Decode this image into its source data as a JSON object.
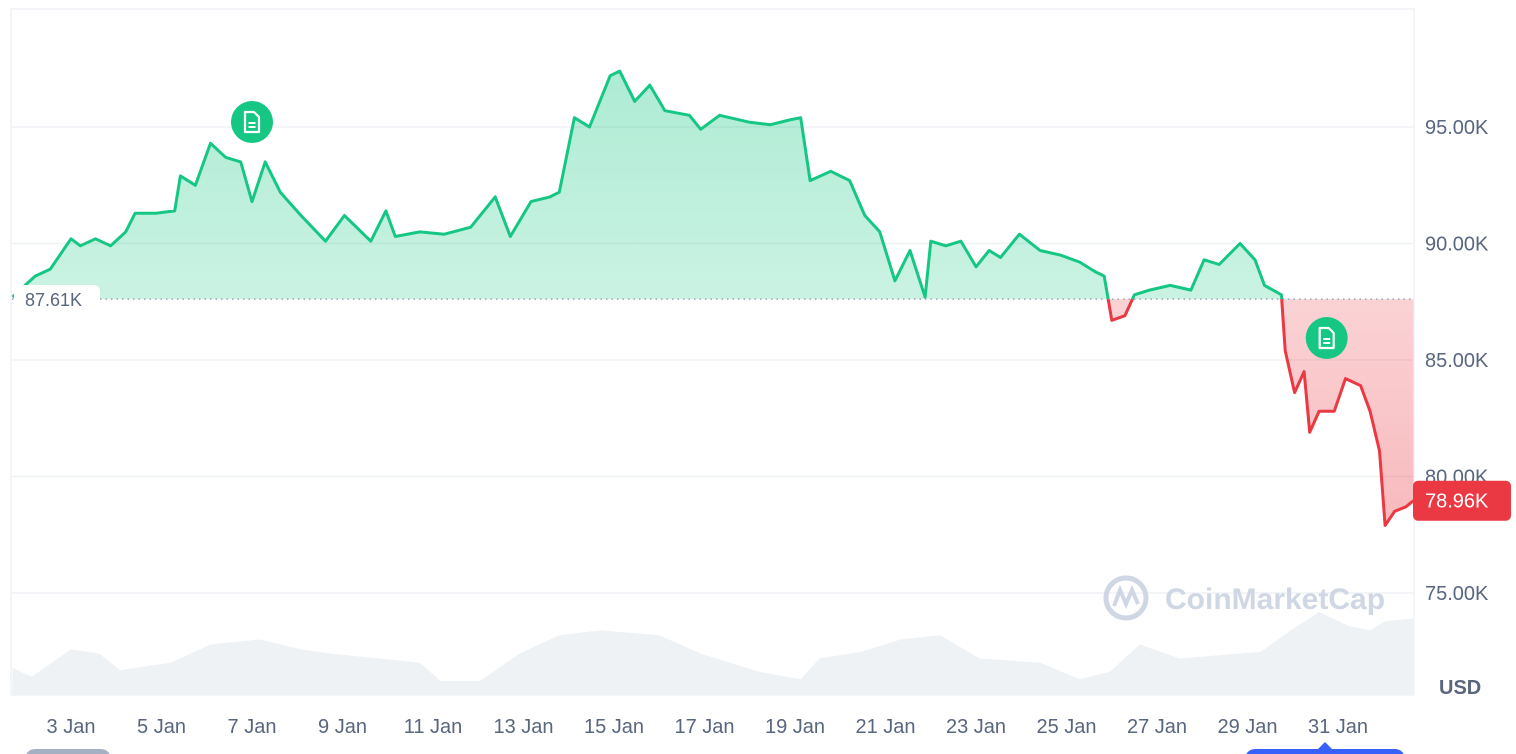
{
  "chart_data": {
    "type": "line",
    "currency_label": "USD",
    "watermark": "CoinMarketCap",
    "baseline_price": 87.61,
    "baseline_label": "87.61K",
    "current_price": 78.96,
    "current_label": "78.96K",
    "ylim": [
      72.5,
      99.5
    ],
    "y_ticks": [
      {
        "value": 95,
        "label": "95.00K"
      },
      {
        "value": 90,
        "label": "90.00K"
      },
      {
        "value": 85,
        "label": "85.00K"
      },
      {
        "value": 80,
        "label": "80.00K"
      },
      {
        "value": 75,
        "label": "75.00K"
      }
    ],
    "x_ticks": [
      "3 Jan",
      "5 Jan",
      "7 Jan",
      "9 Jan",
      "11 Jan",
      "13 Jan",
      "15 Jan",
      "17 Jan",
      "19 Jan",
      "21 Jan",
      "23 Jan",
      "25 Jan",
      "27 Jan",
      "29 Jan",
      "31 Jan"
    ],
    "grid": true,
    "colors": {
      "up": "#16c784",
      "down": "#ea3943",
      "volume": "#eff2f5",
      "grid": "#eff2f5",
      "axis_text": "#58667e",
      "label_down_bg": "#ea3943"
    },
    "news_markers": [
      {
        "date": "Jan 7 00:00",
        "icon": "document-icon"
      },
      {
        "date": "Jan 30 18:00",
        "icon": "document-icon"
      }
    ],
    "price_series": [
      [
        "Jan 1 17:00",
        87.7
      ],
      [
        "Jan 1 20:00",
        87.94
      ],
      [
        "Jan 2 05:00",
        88.6
      ],
      [
        "Jan 2 13:00",
        88.9
      ],
      [
        "Jan 3 00:00",
        90.2
      ],
      [
        "Jan 3 05:00",
        89.9
      ],
      [
        "Jan 3 13:00",
        90.2
      ],
      [
        "Jan 3 21:00",
        89.9
      ],
      [
        "Jan 4 05:00",
        90.5
      ],
      [
        "Jan 4 10:00",
        91.3
      ],
      [
        "Jan 4 21:00",
        91.3
      ],
      [
        "Jan 5 07:00",
        91.4
      ],
      [
        "Jan 5 10:00",
        92.9
      ],
      [
        "Jan 5 18:00",
        92.5
      ],
      [
        "Jan 6 02:00",
        94.3
      ],
      [
        "Jan 6 10:00",
        93.7
      ],
      [
        "Jan 6 18:00",
        93.5
      ],
      [
        "Jan 7 00:00",
        91.8
      ],
      [
        "Jan 7 07:00",
        93.5
      ],
      [
        "Jan 7 15:00",
        92.2
      ],
      [
        "Jan 8 02:00",
        91.2
      ],
      [
        "Jan 8 15:00",
        90.1
      ],
      [
        "Jan 9 01:00",
        91.2
      ],
      [
        "Jan 9 15:00",
        90.1
      ],
      [
        "Jan 9 23:00",
        91.4
      ],
      [
        "Jan 10 04:00",
        90.3
      ],
      [
        "Jan 10 17:00",
        90.5
      ],
      [
        "Jan 11 06:00",
        90.4
      ],
      [
        "Jan 11 20:00",
        90.7
      ],
      [
        "Jan 12 09:00",
        92.0
      ],
      [
        "Jan 12 17:00",
        90.3
      ],
      [
        "Jan 13 04:00",
        91.8
      ],
      [
        "Jan 13 14:00",
        92.0
      ],
      [
        "Jan 13 19:00",
        92.2
      ],
      [
        "Jan 14 03:00",
        95.4
      ],
      [
        "Jan 14 11:00",
        95.0
      ],
      [
        "Jan 14 22:00",
        97.2
      ],
      [
        "Jan 15 03:00",
        97.4
      ],
      [
        "Jan 15 11:00",
        96.1
      ],
      [
        "Jan 15 19:00",
        96.8
      ],
      [
        "Jan 16 03:00",
        95.7
      ],
      [
        "Jan 16 16:00",
        95.5
      ],
      [
        "Jan 16 22:00",
        94.9
      ],
      [
        "Jan 17 08:00",
        95.5
      ],
      [
        "Jan 18 00:00",
        95.2
      ],
      [
        "Jan 18 11:00",
        95.1
      ],
      [
        "Jan 18 21:00",
        95.3
      ],
      [
        "Jan 19 03:00",
        95.4
      ],
      [
        "Jan 19 08:00",
        92.7
      ],
      [
        "Jan 19 19:00",
        93.1
      ],
      [
        "Jan 20 05:00",
        92.7
      ],
      [
        "Jan 20 13:00",
        91.2
      ],
      [
        "Jan 20 21:00",
        90.5
      ],
      [
        "Jan 21 05:00",
        88.4
      ],
      [
        "Jan 21 13:00",
        89.7
      ],
      [
        "Jan 21 21:00",
        87.7
      ],
      [
        "Jan 22 00:00",
        90.1
      ],
      [
        "Jan 22 08:00",
        89.9
      ],
      [
        "Jan 22 16:00",
        90.1
      ],
      [
        "Jan 23 00:00",
        89.0
      ],
      [
        "Jan 23 07:00",
        89.7
      ],
      [
        "Jan 23 13:00",
        89.4
      ],
      [
        "Jan 23 23:00",
        90.4
      ],
      [
        "Jan 24 10:00",
        89.7
      ],
      [
        "Jan 24 21:00",
        89.5
      ],
      [
        "Jan 25 07:00",
        89.2
      ],
      [
        "Jan 25 15:00",
        88.8
      ],
      [
        "Jan 25 20:00",
        88.6
      ],
      [
        "Jan 26 00:00",
        86.7
      ],
      [
        "Jan 26 07:00",
        86.9
      ],
      [
        "Jan 26 12:00",
        87.8
      ],
      [
        "Jan 26 20:00",
        88.0
      ],
      [
        "Jan 27 07:00",
        88.2
      ],
      [
        "Jan 27 18:00",
        88.0
      ],
      [
        "Jan 28 01:00",
        89.3
      ],
      [
        "Jan 28 09:00",
        89.1
      ],
      [
        "Jan 28 20:00",
        90.0
      ],
      [
        "Jan 29 04:00",
        89.3
      ],
      [
        "Jan 29 09:00",
        88.2
      ],
      [
        "Jan 29 18:00",
        87.8
      ],
      [
        "Jan 29 20:00",
        85.4
      ],
      [
        "Jan 30 01:00",
        83.6
      ],
      [
        "Jan 30 06:00",
        84.5
      ],
      [
        "Jan 30 09:00",
        81.9
      ],
      [
        "Jan 30 14:00",
        82.8
      ],
      [
        "Jan 30 22:00",
        82.8
      ],
      [
        "Jan 31 04:00",
        84.2
      ],
      [
        "Jan 31 12:00",
        83.9
      ],
      [
        "Jan 31 17:00",
        82.8
      ],
      [
        "Jan 31 22:00",
        81.1
      ],
      [
        "Feb 1 01:00",
        77.9
      ],
      [
        "Feb 1 06:00",
        78.5
      ],
      [
        "Feb 1 12:00",
        78.7
      ],
      [
        "Feb 1 16:00",
        78.96
      ]
    ],
    "volume_relative": [
      [
        "Jan 1 17:00",
        0.33
      ],
      [
        "Jan 2 03:00",
        0.22
      ],
      [
        "Jan 3 00:00",
        0.55
      ],
      [
        "Jan 3 15:00",
        0.5
      ],
      [
        "Jan 4 02:00",
        0.3
      ],
      [
        "Jan 5 05:00",
        0.39
      ],
      [
        "Jan 6 02:00",
        0.61
      ],
      [
        "Jan 7 04:00",
        0.67
      ],
      [
        "Jan 8 02:00",
        0.55
      ],
      [
        "Jan 8 17:00",
        0.5
      ],
      [
        "Jan 10 17:00",
        0.39
      ],
      [
        "Jan 11 04:00",
        0.17
      ],
      [
        "Jan 12 01:00",
        0.17
      ],
      [
        "Jan 12 22:00",
        0.5
      ],
      [
        "Jan 13 19:00",
        0.72
      ],
      [
        "Jan 14 17:00",
        0.78
      ],
      [
        "Jan 16 00:00",
        0.72
      ],
      [
        "Jan 16 22:00",
        0.5
      ],
      [
        "Jan 18 05:00",
        0.28
      ],
      [
        "Jan 19 03:00",
        0.19
      ],
      [
        "Jan 19 13:00",
        0.44
      ],
      [
        "Jan 20 11:00",
        0.52
      ],
      [
        "Jan 21 08:00",
        0.67
      ],
      [
        "Jan 22 05:00",
        0.72
      ],
      [
        "Jan 23 02:00",
        0.44
      ],
      [
        "Jan 24 10:00",
        0.39
      ],
      [
        "Jan 25 07:00",
        0.19
      ],
      [
        "Jan 25 23:00",
        0.28
      ],
      [
        "Jan 26 15:00",
        0.61
      ],
      [
        "Jan 27 12:00",
        0.44
      ],
      [
        "Jan 29 07:00",
        0.52
      ],
      [
        "Jan 29 23:00",
        0.78
      ],
      [
        "Jan 30 14:00",
        1.0
      ],
      [
        "Jan 31 06:00",
        0.83
      ],
      [
        "Jan 31 17:00",
        0.78
      ],
      [
        "Feb 1 01:00",
        0.89
      ],
      [
        "Feb 1 16:00",
        0.92
      ]
    ]
  }
}
